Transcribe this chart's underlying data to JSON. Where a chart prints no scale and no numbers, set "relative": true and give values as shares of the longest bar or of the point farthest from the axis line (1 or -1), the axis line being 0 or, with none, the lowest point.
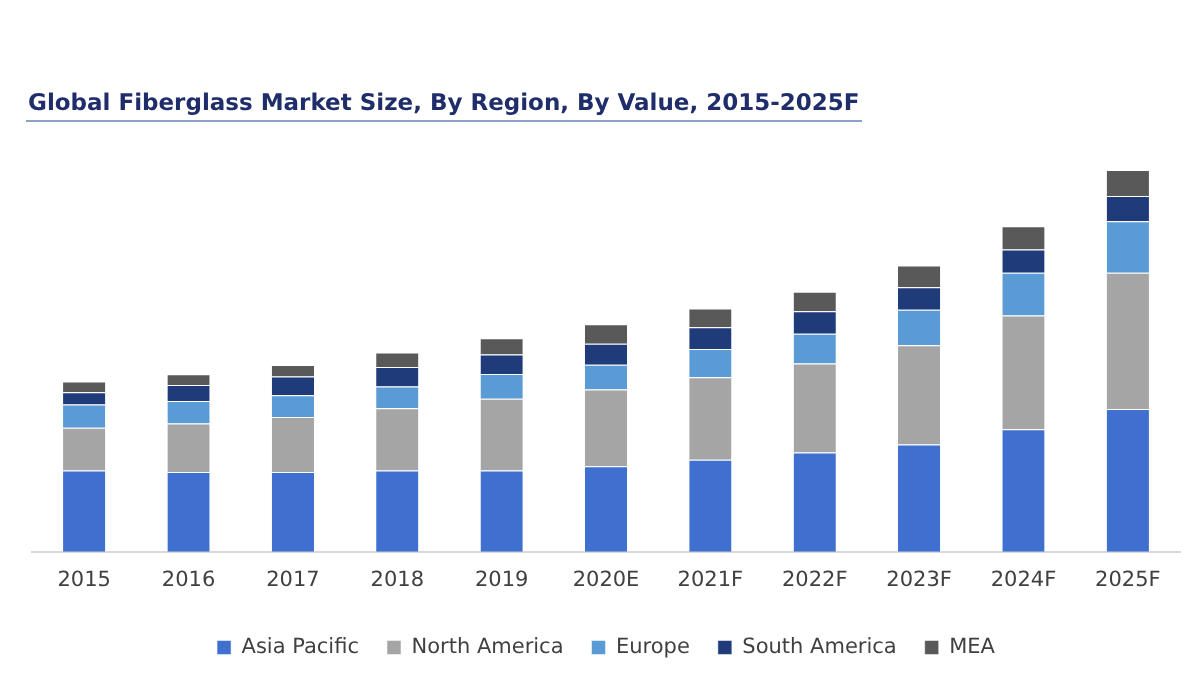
{
  "chart_data": {
    "type": "bar",
    "title": "Global Fiberglass Market Size, By Region, By Value, 2015-2025F",
    "categories": [
      "2015",
      "2016",
      "2017",
      "2018",
      "2019",
      "2020E",
      "2021F",
      "2022F",
      "2023F",
      "2024F",
      "2025F"
    ],
    "stacked": true,
    "relative": true,
    "legend": "bottom",
    "grid": false,
    "series": [
      {
        "name": "Asia Pacific",
        "color": "#3f6fcf",
        "values": [
          0.213,
          0.209,
          0.209,
          0.213,
          0.213,
          0.224,
          0.241,
          0.26,
          0.281,
          0.321,
          0.374
        ]
      },
      {
        "name": "North America",
        "color": "#a5a5a5",
        "values": [
          0.112,
          0.127,
          0.144,
          0.163,
          0.188,
          0.201,
          0.216,
          0.233,
          0.26,
          0.298,
          0.357
        ]
      },
      {
        "name": "Europe",
        "color": "#5b9bd5",
        "values": [
          0.061,
          0.059,
          0.057,
          0.057,
          0.065,
          0.065,
          0.074,
          0.078,
          0.093,
          0.112,
          0.135
        ]
      },
      {
        "name": "South America",
        "color": "#1f3b7a",
        "values": [
          0.032,
          0.042,
          0.049,
          0.051,
          0.051,
          0.055,
          0.057,
          0.059,
          0.059,
          0.061,
          0.066
        ]
      },
      {
        "name": "MEA",
        "color": "#595959",
        "values": [
          0.028,
          0.028,
          0.03,
          0.038,
          0.042,
          0.051,
          0.049,
          0.051,
          0.057,
          0.061,
          0.068
        ]
      }
    ]
  }
}
